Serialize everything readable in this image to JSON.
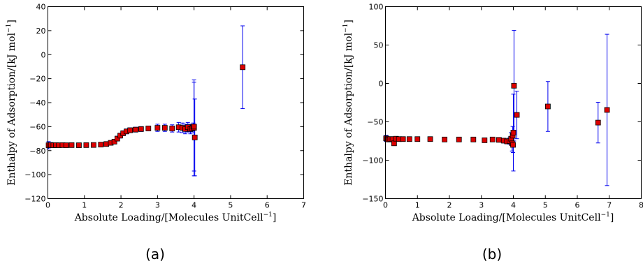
{
  "chart_data": [
    {
      "type": "scatter",
      "caption": "(a)",
      "xlabel": {
        "base": "Absolute Loading/[Molecules UnitCell",
        "sup": "−1",
        "end": "]"
      },
      "ylabel": {
        "base": "Enthalpy of Adsorption/[kJ mol",
        "sup": "−1",
        "end": "]"
      },
      "xlim": [
        0,
        7
      ],
      "ylim": [
        -120,
        40
      ],
      "xticks": [
        "0",
        "1",
        "2",
        "3",
        "4",
        "5",
        "6",
        "7"
      ],
      "yticks": [
        "−120",
        "−100",
        "−80",
        "−60",
        "−40",
        "−20",
        "0",
        "20",
        "40"
      ],
      "marker_color": "#dd0000",
      "errorbar_color": "#0000ee",
      "points": [
        {
          "x": 0.02,
          "y": -75.5,
          "err": 3
        },
        {
          "x": 0.08,
          "y": -75.3,
          "err": 2
        },
        {
          "x": 0.15,
          "y": -75.5,
          "err": 2
        },
        {
          "x": 0.22,
          "y": -75.4,
          "err": 1.5
        },
        {
          "x": 0.3,
          "y": -75.5,
          "err": 1.5
        },
        {
          "x": 0.4,
          "y": -75.4,
          "err": 1.5
        },
        {
          "x": 0.5,
          "y": -75.5,
          "err": 1.5
        },
        {
          "x": 0.65,
          "y": -75.4,
          "err": 1.5
        },
        {
          "x": 0.85,
          "y": -75.5,
          "err": 1.5
        },
        {
          "x": 1.05,
          "y": -75.4,
          "err": 1.5
        },
        {
          "x": 1.25,
          "y": -75.3,
          "err": 1.5
        },
        {
          "x": 1.45,
          "y": -75.0,
          "err": 1.5
        },
        {
          "x": 1.6,
          "y": -74.5,
          "err": 1.5
        },
        {
          "x": 1.72,
          "y": -73.5,
          "err": 1.5
        },
        {
          "x": 1.82,
          "y": -72.5,
          "err": 1.5
        },
        {
          "x": 1.9,
          "y": -70.0,
          "err": 2
        },
        {
          "x": 1.98,
          "y": -67.5,
          "err": 2
        },
        {
          "x": 2.06,
          "y": -65.5,
          "err": 2
        },
        {
          "x": 2.15,
          "y": -64.0,
          "err": 2
        },
        {
          "x": 2.25,
          "y": -63.0,
          "err": 2
        },
        {
          "x": 2.4,
          "y": -62.5,
          "err": 2
        },
        {
          "x": 2.55,
          "y": -62.0,
          "err": 2
        },
        {
          "x": 2.75,
          "y": -61.5,
          "err": 2
        },
        {
          "x": 3.0,
          "y": -61.0,
          "err": 3
        },
        {
          "x": 3.2,
          "y": -61.0,
          "err": 3
        },
        {
          "x": 3.4,
          "y": -61.5,
          "err": 3
        },
        {
          "x": 3.58,
          "y": -60.5,
          "err": 4
        },
        {
          "x": 3.68,
          "y": -61.0,
          "err": 4
        },
        {
          "x": 3.76,
          "y": -62.0,
          "err": 4
        },
        {
          "x": 3.83,
          "y": -60.5,
          "err": 4
        },
        {
          "x": 3.9,
          "y": -62.0,
          "err": 4
        },
        {
          "x": 3.95,
          "y": -61.5,
          "err": 3
        },
        {
          "x": 3.98,
          "y": -60.0,
          "err": 3
        },
        {
          "x": 4.0,
          "y": -61.0,
          "err": 40
        },
        {
          "x": 4.0,
          "y": -60.0,
          "err": 37
        },
        {
          "x": 4.02,
          "y": -69.0,
          "err": 32
        },
        {
          "x": 5.33,
          "y": -10.5,
          "err": 34.5
        }
      ]
    },
    {
      "type": "scatter",
      "caption": "(b)",
      "xlabel": {
        "base": "Absolute Loading/[Molecules UnitCell",
        "sup": "−1",
        "end": "]"
      },
      "ylabel": {
        "base": "Enthalpy of Adsorption/[kJ mol",
        "sup": "−1",
        "end": "]"
      },
      "xlim": [
        0,
        8
      ],
      "ylim": [
        -150,
        100
      ],
      "xticks": [
        "0",
        "1",
        "2",
        "3",
        "4",
        "5",
        "6",
        "7",
        "8"
      ],
      "yticks": [
        "−150",
        "−100",
        "−50",
        "0",
        "50",
        "100"
      ],
      "marker_color": "#dd0000",
      "errorbar_color": "#0000ee",
      "points": [
        {
          "x": 0.02,
          "y": -71.5,
          "err": 4
        },
        {
          "x": 0.06,
          "y": -72.5,
          "err": 3
        },
        {
          "x": 0.1,
          "y": -73.0,
          "err": 2
        },
        {
          "x": 0.15,
          "y": -72.5,
          "err": 2
        },
        {
          "x": 0.22,
          "y": -72.5,
          "err": 2
        },
        {
          "x": 0.27,
          "y": -78.0,
          "err": 2
        },
        {
          "x": 0.33,
          "y": -72.0,
          "err": 2
        },
        {
          "x": 0.42,
          "y": -72.5,
          "err": 2
        },
        {
          "x": 0.55,
          "y": -72.5,
          "err": 2
        },
        {
          "x": 0.75,
          "y": -72.5,
          "err": 2
        },
        {
          "x": 1.0,
          "y": -72.5,
          "err": 2
        },
        {
          "x": 1.4,
          "y": -72.5,
          "err": 2
        },
        {
          "x": 1.85,
          "y": -73.0,
          "err": 2
        },
        {
          "x": 2.3,
          "y": -73.0,
          "err": 2
        },
        {
          "x": 2.75,
          "y": -73.0,
          "err": 2
        },
        {
          "x": 3.1,
          "y": -74.0,
          "err": 2
        },
        {
          "x": 3.35,
          "y": -73.0,
          "err": 2
        },
        {
          "x": 3.55,
          "y": -73.5,
          "err": 2
        },
        {
          "x": 3.7,
          "y": -74.5,
          "err": 3
        },
        {
          "x": 3.8,
          "y": -75.5,
          "err": 3
        },
        {
          "x": 3.88,
          "y": -75.0,
          "err": 4
        },
        {
          "x": 3.93,
          "y": -72.0,
          "err": 8
        },
        {
          "x": 3.96,
          "y": -78.0,
          "err": 10
        },
        {
          "x": 3.98,
          "y": -68.0,
          "err": 12
        },
        {
          "x": 3.99,
          "y": -80.0,
          "err": 10
        },
        {
          "x": 4.0,
          "y": -64.0,
          "err": 50
        },
        {
          "x": 4.02,
          "y": -3.0,
          "err": 72
        },
        {
          "x": 4.11,
          "y": -41.0,
          "err": 31
        },
        {
          "x": 5.08,
          "y": -30.0,
          "err": 32.5
        },
        {
          "x": 6.65,
          "y": -51.0,
          "err": 26.5
        },
        {
          "x": 6.93,
          "y": -34.5,
          "err": 98.5
        }
      ]
    }
  ]
}
